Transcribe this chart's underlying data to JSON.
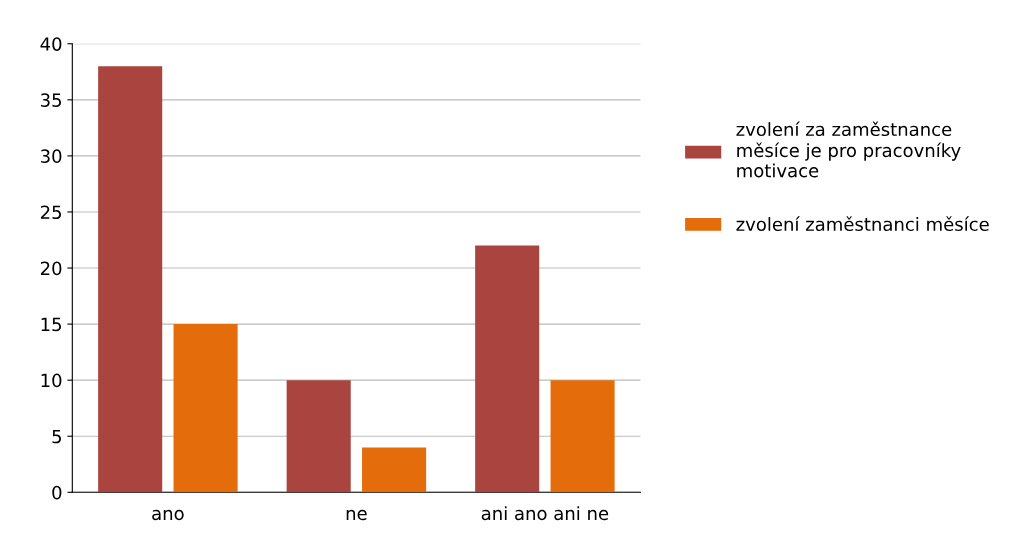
{
  "chart_data": {
    "type": "bar",
    "categories": [
      "ano",
      "ne",
      "ani ano ani ne"
    ],
    "series": [
      {
        "name": "zvolení za zaměstnance měsíce je pro pracovníky motivace",
        "color": "#a9443f",
        "values": [
          38,
          10,
          22
        ]
      },
      {
        "name": "zvolení zaměstnanci měsíce",
        "color": "#e46c0a",
        "values": [
          15,
          4,
          10
        ]
      }
    ],
    "ylim": [
      0,
      40
    ],
    "yticks": [
      0,
      5,
      10,
      15,
      20,
      25,
      30,
      35,
      40
    ],
    "grid": "y",
    "legend": "right"
  }
}
